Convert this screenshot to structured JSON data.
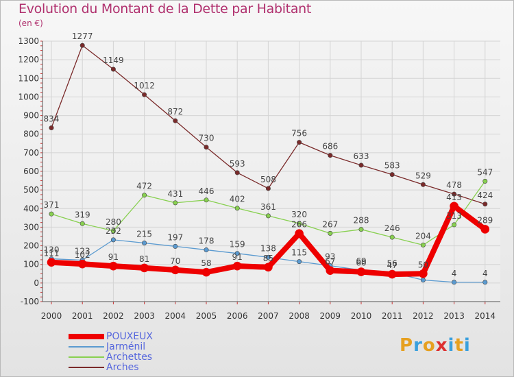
{
  "header": {
    "title": "Evolution du Montant de la Dette par Habitant",
    "unit": "(en €)"
  },
  "logo": {
    "letters": [
      "P",
      "r",
      "o",
      "x",
      "i",
      "t",
      "i"
    ],
    "colors": [
      "#e6a020",
      "#3aa0dd",
      "#e6a020",
      "#dd3030",
      "#3aa0dd",
      "#e6a020",
      "#3aa0dd"
    ]
  },
  "chart_data": {
    "type": "line",
    "title": "Evolution du Montant de la Dette par Habitant",
    "ylabel": "(en €)",
    "xlabel": "",
    "ylim": [
      -100,
      1300
    ],
    "yticks": [
      -100,
      0,
      100,
      200,
      300,
      400,
      500,
      600,
      700,
      800,
      900,
      1000,
      1100,
      1200,
      1300
    ],
    "grid": true,
    "legend_position": "bottom-left",
    "x": [
      "2000",
      "2001",
      "2002",
      "2003",
      "2004",
      "2005",
      "2006",
      "2007",
      "2008",
      "2009",
      "2010",
      "2011",
      "2012",
      "2013",
      "2014"
    ],
    "series": [
      {
        "name": "Arches",
        "color": "#7a2a2a",
        "values": [
          834,
          1277,
          1149,
          1012,
          872,
          730,
          593,
          508,
          756,
          686,
          633,
          583,
          529,
          478,
          424
        ],
        "labels": [
          "834",
          "1277",
          "1149",
          "1012",
          "872",
          "730",
          "593",
          "508",
          "756",
          "686",
          "633",
          "583",
          "529",
          "478",
          "424"
        ]
      },
      {
        "name": "Archettes",
        "color": "#88d050",
        "values": [
          371,
          319,
          280,
          472,
          431,
          446,
          402,
          361,
          320,
          267,
          288,
          246,
          204,
          313,
          547
        ],
        "labels": [
          "371",
          "319",
          "280",
          "472",
          "431",
          "446",
          "402",
          "361",
          "320",
          "267",
          "288",
          "246",
          "204",
          "313",
          "547"
        ]
      },
      {
        "name": "Jarménil",
        "color": "#5a9ad0",
        "values": [
          130,
          123,
          232,
          215,
          197,
          178,
          159,
          138,
          115,
          93,
          69,
          56,
          16,
          4,
          4
        ],
        "labels": [
          "130",
          "123",
          "232",
          "215",
          "197",
          "178",
          "159",
          "138",
          "115",
          "93",
          "69",
          "56",
          "",
          "4",
          "4"
        ]
      },
      {
        "name": "POUXEUX",
        "color": "#ee0000",
        "values": [
          111,
          102,
          91,
          81,
          70,
          58,
          91,
          85,
          266,
          67,
          60,
          47,
          50,
          413,
          289
        ],
        "labels": [
          "111",
          "102",
          "91",
          "81",
          "70",
          "58",
          "91",
          "85",
          "266",
          "67",
          "60",
          "47",
          "50",
          "413",
          "289"
        ]
      }
    ],
    "legend_order": [
      "POUXEUX",
      "Jarménil",
      "Archettes",
      "Arches"
    ]
  }
}
